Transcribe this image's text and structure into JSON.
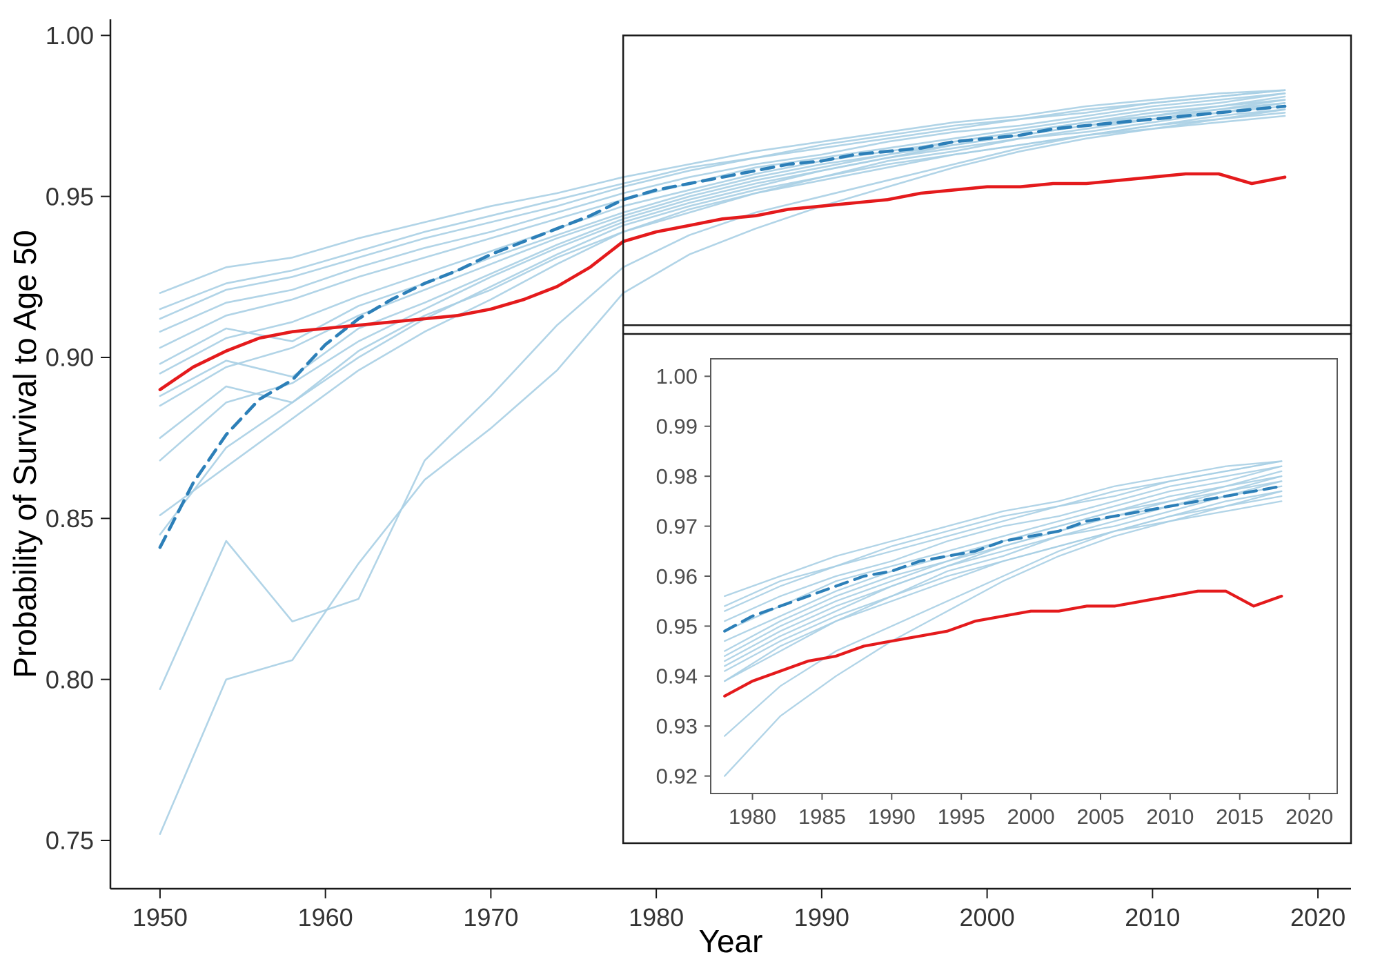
{
  "figure": {
    "xlabel": "Year",
    "ylabel": "Probability of Survival to Age 50"
  },
  "colors": {
    "ensemble_line": "#A9CFE4",
    "mean_line": "#2C7FB8",
    "highlight_line": "#E41A1C",
    "axis": "#1a1a1a",
    "main_tick_text": "#333333",
    "inset_tick_text": "#4d4d4d",
    "inset_panel_border": "#595959",
    "box_border": "#1a1a1a",
    "background": "#ffffff"
  },
  "chart_data": {
    "type": "line",
    "title": "",
    "xlabel": "Year",
    "ylabel": "Probability of Survival to Age 50",
    "legend": "none",
    "grid": false,
    "panels": [
      {
        "id": "main",
        "xlim": [
          1947,
          2022
        ],
        "ylim": [
          0.735,
          1.005
        ],
        "xticks": [
          1950,
          1960,
          1970,
          1980,
          1990,
          2000,
          2010,
          2020
        ],
        "xtick_labels": [
          "1950",
          "1960",
          "1970",
          "1980",
          "1990",
          "2000",
          "2010",
          "2020"
        ],
        "yticks": [
          0.75,
          0.8,
          0.85,
          0.9,
          0.95,
          1.0
        ],
        "ytick_labels": [
          "0.75",
          "0.80",
          "0.85",
          "0.90",
          "0.95",
          "1.00"
        ]
      },
      {
        "id": "inset",
        "xlim": [
          1977,
          2022
        ],
        "ylim": [
          0.9165,
          1.0035
        ],
        "xticks": [
          1980,
          1985,
          1990,
          1995,
          2000,
          2005,
          2010,
          2015,
          2020
        ],
        "xtick_labels": [
          "1980",
          "1985",
          "1990",
          "1995",
          "2000",
          "2005",
          "2010",
          "2015",
          "2020"
        ],
        "yticks": [
          0.92,
          0.93,
          0.94,
          0.95,
          0.96,
          0.97,
          0.98,
          0.99,
          1.0
        ],
        "ytick_labels": [
          "0.92",
          "0.93",
          "0.94",
          "0.95",
          "0.96",
          "0.97",
          "0.98",
          "0.99",
          "1.00"
        ]
      }
    ],
    "zoom_region": {
      "x0": 1978,
      "x1": 2022,
      "y0": 0.91,
      "y1": 1.0
    },
    "series": {
      "ensemble": {
        "name": "individual-countries",
        "color": "#A9CFE4",
        "years": [
          1950,
          1954,
          1958,
          1962,
          1966,
          1970,
          1974,
          1978,
          1982,
          1986,
          1990,
          1994,
          1998,
          2002,
          2006,
          2010,
          2014,
          2018
        ],
        "lines": [
          [
            0.752,
            0.8,
            0.806,
            0.836,
            0.862,
            0.878,
            0.896,
            0.92,
            0.932,
            0.94,
            0.947,
            0.953,
            0.959,
            0.964,
            0.968,
            0.971,
            0.973,
            0.975
          ],
          [
            0.797,
            0.843,
            0.818,
            0.825,
            0.868,
            0.888,
            0.91,
            0.928,
            0.938,
            0.945,
            0.95,
            0.955,
            0.96,
            0.965,
            0.969,
            0.972,
            0.974,
            0.976
          ],
          [
            0.845,
            0.872,
            0.886,
            0.9,
            0.912,
            0.922,
            0.932,
            0.941,
            0.947,
            0.952,
            0.956,
            0.96,
            0.963,
            0.966,
            0.969,
            0.972,
            0.975,
            0.977
          ],
          [
            0.851,
            0.866,
            0.881,
            0.896,
            0.908,
            0.918,
            0.929,
            0.939,
            0.945,
            0.951,
            0.955,
            0.959,
            0.963,
            0.966,
            0.969,
            0.971,
            0.974,
            0.977
          ],
          [
            0.868,
            0.886,
            0.892,
            0.905,
            0.915,
            0.925,
            0.934,
            0.942,
            0.948,
            0.953,
            0.958,
            0.962,
            0.965,
            0.968,
            0.97,
            0.973,
            0.976,
            0.978
          ],
          [
            0.875,
            0.891,
            0.886,
            0.902,
            0.913,
            0.921,
            0.931,
            0.939,
            0.946,
            0.951,
            0.956,
            0.961,
            0.964,
            0.968,
            0.971,
            0.974,
            0.976,
            0.979
          ],
          [
            0.885,
            0.897,
            0.903,
            0.913,
            0.921,
            0.929,
            0.937,
            0.944,
            0.95,
            0.955,
            0.959,
            0.963,
            0.966,
            0.969,
            0.972,
            0.975,
            0.977,
            0.98
          ],
          [
            0.888,
            0.899,
            0.894,
            0.909,
            0.917,
            0.926,
            0.935,
            0.943,
            0.949,
            0.954,
            0.958,
            0.962,
            0.966,
            0.969,
            0.972,
            0.974,
            0.977,
            0.979
          ],
          [
            0.895,
            0.906,
            0.911,
            0.919,
            0.926,
            0.933,
            0.94,
            0.947,
            0.952,
            0.957,
            0.961,
            0.964,
            0.967,
            0.97,
            0.973,
            0.976,
            0.978,
            0.981
          ],
          [
            0.898,
            0.909,
            0.905,
            0.916,
            0.923,
            0.931,
            0.938,
            0.945,
            0.951,
            0.956,
            0.96,
            0.963,
            0.967,
            0.97,
            0.973,
            0.975,
            0.978,
            0.98
          ],
          [
            0.903,
            0.913,
            0.918,
            0.925,
            0.931,
            0.937,
            0.943,
            0.949,
            0.954,
            0.959,
            0.962,
            0.965,
            0.968,
            0.971,
            0.974,
            0.977,
            0.979,
            0.982
          ],
          [
            0.908,
            0.917,
            0.921,
            0.928,
            0.934,
            0.939,
            0.945,
            0.951,
            0.956,
            0.96,
            0.963,
            0.967,
            0.97,
            0.972,
            0.975,
            0.978,
            0.98,
            0.982
          ],
          [
            0.912,
            0.921,
            0.925,
            0.931,
            0.937,
            0.942,
            0.947,
            0.953,
            0.958,
            0.962,
            0.965,
            0.968,
            0.971,
            0.974,
            0.976,
            0.979,
            0.981,
            0.983
          ],
          [
            0.915,
            0.923,
            0.927,
            0.933,
            0.939,
            0.944,
            0.949,
            0.954,
            0.959,
            0.962,
            0.966,
            0.969,
            0.972,
            0.974,
            0.977,
            0.979,
            0.981,
            0.983
          ],
          [
            0.92,
            0.928,
            0.931,
            0.937,
            0.942,
            0.947,
            0.951,
            0.956,
            0.96,
            0.964,
            0.967,
            0.97,
            0.973,
            0.975,
            0.978,
            0.98,
            0.982,
            0.983
          ]
        ]
      },
      "mean": {
        "name": "mean-dashed",
        "color": "#2C7FB8",
        "dash": "18 11",
        "years": [
          1950,
          1952,
          1954,
          1956,
          1958,
          1960,
          1962,
          1964,
          1966,
          1968,
          1970,
          1972,
          1974,
          1976,
          1978,
          1980,
          1982,
          1984,
          1986,
          1988,
          1990,
          1992,
          1994,
          1996,
          1998,
          2000,
          2002,
          2004,
          2006,
          2008,
          2010,
          2012,
          2014,
          2016,
          2018
        ],
        "values": [
          0.841,
          0.861,
          0.876,
          0.887,
          0.893,
          0.904,
          0.912,
          0.918,
          0.923,
          0.927,
          0.932,
          0.936,
          0.94,
          0.944,
          0.949,
          0.952,
          0.954,
          0.956,
          0.958,
          0.96,
          0.961,
          0.963,
          0.964,
          0.965,
          0.967,
          0.968,
          0.969,
          0.971,
          0.972,
          0.973,
          0.974,
          0.975,
          0.976,
          0.977,
          0.978
        ]
      },
      "highlight": {
        "name": "highlighted-country-red",
        "color": "#E41A1C",
        "years": [
          1950,
          1952,
          1954,
          1956,
          1958,
          1960,
          1962,
          1964,
          1966,
          1968,
          1970,
          1972,
          1974,
          1976,
          1978,
          1980,
          1982,
          1984,
          1986,
          1988,
          1990,
          1992,
          1994,
          1996,
          1998,
          2000,
          2002,
          2004,
          2006,
          2008,
          2010,
          2012,
          2014,
          2016,
          2018
        ],
        "values": [
          0.89,
          0.897,
          0.902,
          0.906,
          0.908,
          0.909,
          0.91,
          0.911,
          0.912,
          0.913,
          0.915,
          0.918,
          0.922,
          0.928,
          0.936,
          0.939,
          0.941,
          0.943,
          0.944,
          0.946,
          0.947,
          0.948,
          0.949,
          0.951,
          0.952,
          0.953,
          0.953,
          0.954,
          0.954,
          0.955,
          0.956,
          0.957,
          0.957,
          0.954,
          0.956
        ]
      }
    }
  }
}
